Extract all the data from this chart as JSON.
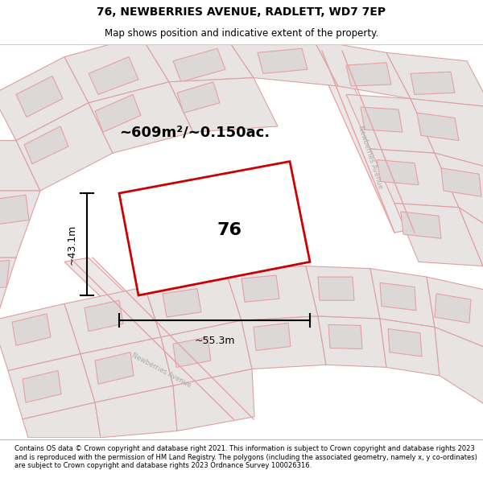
{
  "title_line1": "76, NEWBERRIES AVENUE, RADLETT, WD7 7EP",
  "title_line2": "Map shows position and indicative extent of the property.",
  "footer_text": "Contains OS data © Crown copyright and database right 2021. This information is subject to Crown copyright and database rights 2023 and is reproduced with the permission of HM Land Registry. The polygons (including the associated geometry, namely x, y co-ordinates) are subject to Crown copyright and database rights 2023 Ordnance Survey 100026316.",
  "area_label": "~609m²/~0.150ac.",
  "width_label": "~55.3m",
  "height_label": "~43.1m",
  "property_number": "76",
  "road_color": "#e8a0a0",
  "line_color": "#cc0000",
  "street_label1": "Newberries Avenue",
  "street_label2": "Newberries Avenue",
  "title_fontsize": 10,
  "subtitle_fontsize": 8.5,
  "footer_fontsize": 6.0
}
